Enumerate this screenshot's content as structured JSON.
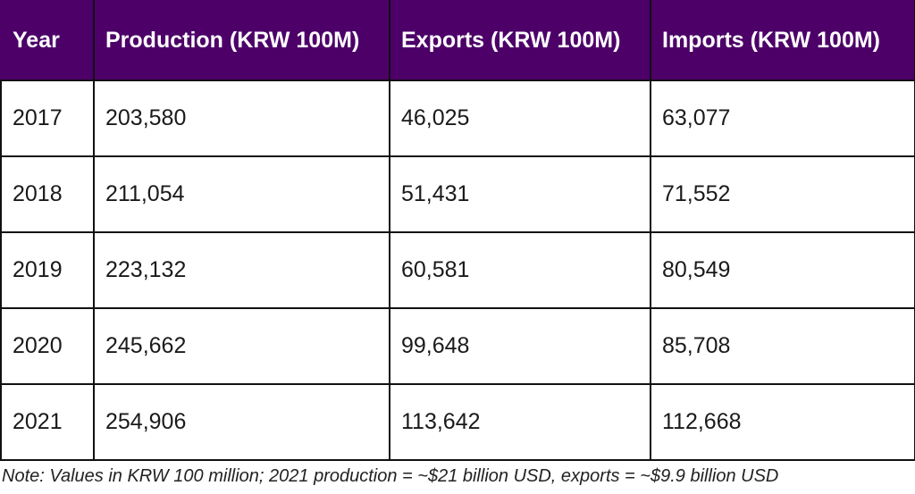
{
  "table": {
    "colors": {
      "header_bg": "#4c0068",
      "header_text": "#ffffff",
      "border": "#111111"
    },
    "headers": [
      "Year",
      "Production (KRW 100M)",
      "Exports (KRW 100M)",
      "Imports (KRW 100M)"
    ],
    "rows": [
      [
        "2017",
        "203,580",
        "46,025",
        "63,077"
      ],
      [
        "2018",
        "211,054",
        "51,431",
        "71,552"
      ],
      [
        "2019",
        "223,132",
        "60,581",
        "80,549"
      ],
      [
        "2020",
        "245,662",
        "99,648",
        "85,708"
      ],
      [
        "2021",
        "254,906",
        "113,642",
        "112,668"
      ]
    ]
  },
  "note": "Note: Values in KRW 100 million; 2021 production = ~$21 billion USD, exports = ~$9.9 billion USD",
  "chart_data": {
    "type": "table",
    "title": "",
    "columns": [
      "Year",
      "Production (KRW 100M)",
      "Exports (KRW 100M)",
      "Imports (KRW 100M)"
    ],
    "categories": [
      "2017",
      "2018",
      "2019",
      "2020",
      "2021"
    ],
    "series": [
      {
        "name": "Production (KRW 100M)",
        "values": [
          203580,
          211054,
          223132,
          245662,
          254906
        ]
      },
      {
        "name": "Exports (KRW 100M)",
        "values": [
          46025,
          51431,
          60581,
          99648,
          113642
        ]
      },
      {
        "name": "Imports (KRW 100M)",
        "values": [
          63077,
          71552,
          80549,
          85708,
          112668
        ]
      }
    ],
    "annotations": [
      "Note: Values in KRW 100 million; 2021 production = ~$21 billion USD, exports = ~$9.9 billion USD"
    ]
  }
}
